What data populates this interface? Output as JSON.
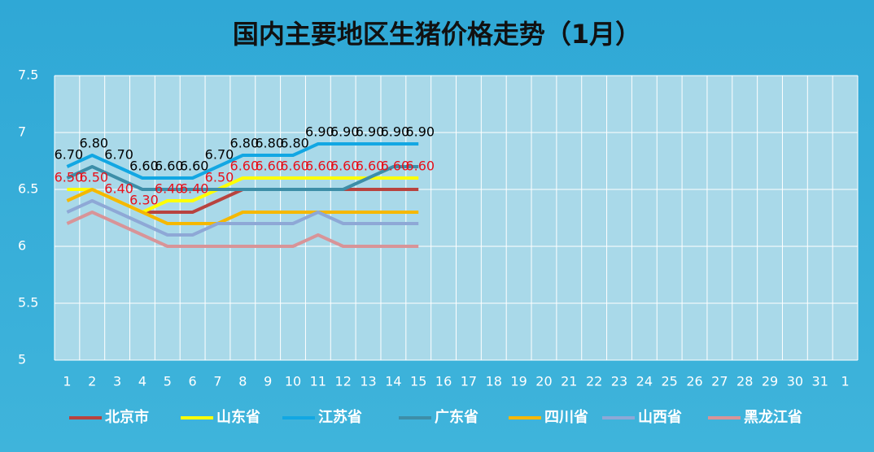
{
  "chart_data": {
    "type": "line",
    "title": "国内主要地区生猪价格走势（1月）",
    "categories": [
      1,
      2,
      3,
      4,
      5,
      6,
      7,
      8,
      9,
      10,
      11,
      12,
      13,
      14,
      15,
      16,
      17,
      18,
      19,
      20,
      21,
      22,
      23,
      24,
      25,
      26,
      27,
      28,
      29,
      30,
      31,
      1
    ],
    "ylim": [
      5,
      7.5
    ],
    "yticks": [
      5,
      5.5,
      6,
      6.5,
      7,
      7.5
    ],
    "grid": true,
    "legend": "bottom",
    "series": [
      {
        "name": "北京市",
        "color": "#b8433f",
        "values": [
          null,
          null,
          null,
          6.3,
          6.3,
          6.3,
          6.4,
          6.5,
          6.5,
          6.5,
          6.5,
          6.5,
          6.5,
          6.5,
          6.5,
          null,
          null,
          null,
          null,
          null,
          null,
          null,
          null,
          null,
          null,
          null,
          null,
          null,
          null,
          null,
          null,
          null
        ]
      },
      {
        "name": "山东省",
        "color": "#ffff00",
        "label_color": "#e8101a",
        "values": [
          6.5,
          6.5,
          6.4,
          6.3,
          6.4,
          6.4,
          6.5,
          6.6,
          6.6,
          6.6,
          6.6,
          6.6,
          6.6,
          6.6,
          6.6,
          null,
          null,
          null,
          null,
          null,
          null,
          null,
          null,
          null,
          null,
          null,
          null,
          null,
          null,
          null,
          null,
          null
        ],
        "value_labels": [
          "6.50",
          "6.50",
          "6.40",
          "6.30",
          "6.40",
          "6.40",
          "6.50",
          "6.60",
          "6.60",
          "6.60",
          "6.60",
          "6.60",
          "6.60",
          "6.60",
          "6.60",
          null,
          null,
          null,
          null,
          null,
          null,
          null,
          null,
          null,
          null,
          null,
          null,
          null,
          null,
          null,
          null,
          null
        ]
      },
      {
        "name": "江苏省",
        "color": "#12a7e3",
        "label_color": "#000000",
        "values": [
          6.7,
          6.8,
          6.7,
          6.6,
          6.6,
          6.6,
          6.7,
          6.8,
          6.8,
          6.8,
          6.9,
          6.9,
          6.9,
          6.9,
          6.9,
          null,
          null,
          null,
          null,
          null,
          null,
          null,
          null,
          null,
          null,
          null,
          null,
          null,
          null,
          null,
          null,
          null
        ],
        "value_labels": [
          "6.70",
          "6.80",
          "6.70",
          "6.60",
          "6.60",
          "6.60",
          "6.70",
          "6.80",
          "6.80",
          "6.80",
          "6.90",
          "6.90",
          "6.90",
          "6.90",
          "6.90",
          null,
          null,
          null,
          null,
          null,
          null,
          null,
          null,
          null,
          null,
          null,
          null,
          null,
          null,
          null,
          null,
          null
        ]
      },
      {
        "name": "广东省",
        "color": "#3d8ea8",
        "values": [
          6.6,
          6.7,
          6.6,
          6.5,
          6.5,
          6.5,
          6.5,
          6.5,
          6.5,
          6.5,
          6.5,
          6.5,
          6.6,
          6.7,
          6.7,
          null,
          null,
          null,
          null,
          null,
          null,
          null,
          null,
          null,
          null,
          null,
          null,
          null,
          null,
          null,
          null,
          null
        ]
      },
      {
        "name": "四川省",
        "color": "#f5b800",
        "values": [
          6.4,
          6.5,
          6.4,
          6.3,
          6.2,
          6.2,
          6.2,
          6.3,
          6.3,
          6.3,
          6.3,
          6.3,
          6.3,
          6.3,
          6.3,
          null,
          null,
          null,
          null,
          null,
          null,
          null,
          null,
          null,
          null,
          null,
          null,
          null,
          null,
          null,
          null,
          null
        ]
      },
      {
        "name": "山西省",
        "color": "#8ea8d6",
        "values": [
          6.3,
          6.4,
          6.3,
          6.2,
          6.1,
          6.1,
          6.2,
          6.2,
          6.2,
          6.2,
          6.3,
          6.2,
          6.2,
          6.2,
          6.2,
          null,
          null,
          null,
          null,
          null,
          null,
          null,
          null,
          null,
          null,
          null,
          null,
          null,
          null,
          null,
          null,
          null
        ]
      },
      {
        "name": "黑龙江省",
        "color": "#d89498",
        "values": [
          6.2,
          6.3,
          6.2,
          6.1,
          6.0,
          6.0,
          6.0,
          6.0,
          6.0,
          6.0,
          6.1,
          6.0,
          6.0,
          6.0,
          6.0,
          null,
          null,
          null,
          null,
          null,
          null,
          null,
          null,
          null,
          null,
          null,
          null,
          null,
          null,
          null,
          null,
          null
        ]
      }
    ]
  }
}
